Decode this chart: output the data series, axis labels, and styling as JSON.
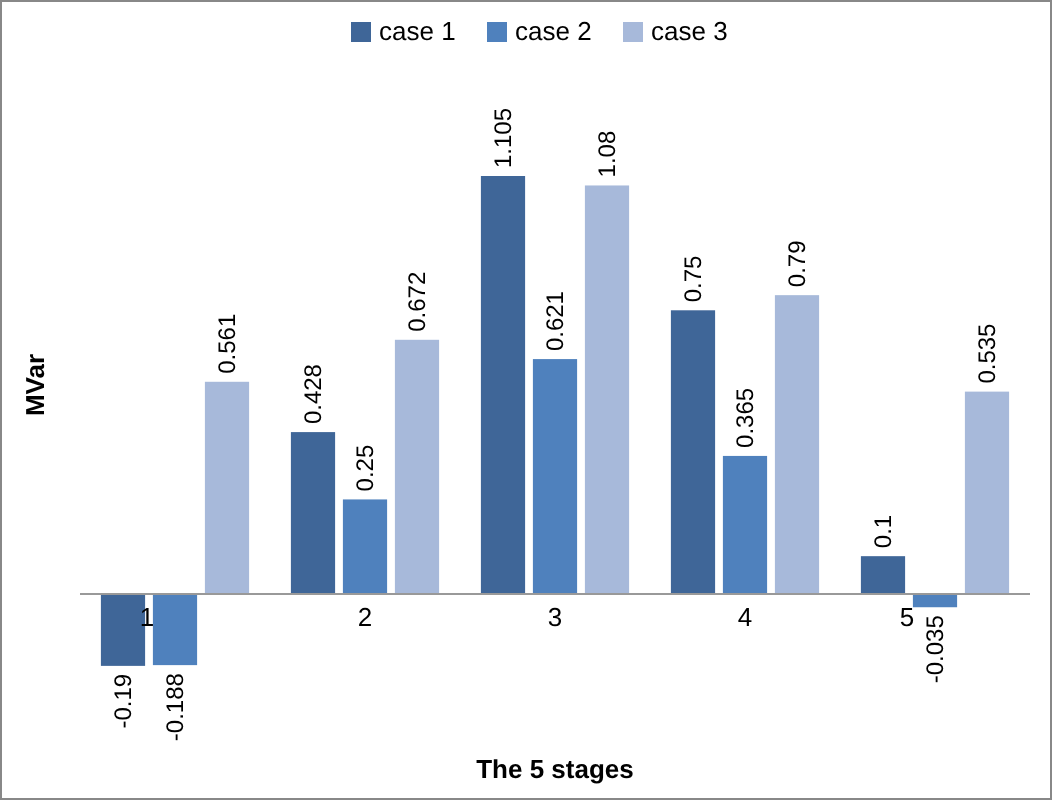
{
  "chart_data": {
    "type": "bar",
    "xlabel": "The 5 stages",
    "ylabel": "MVar",
    "categories": [
      "1",
      "2",
      "3",
      "4",
      "5"
    ],
    "series": [
      {
        "name": "case 1",
        "color": "#3f6698",
        "values": [
          -0.19,
          0.428,
          1.105,
          0.75,
          0.1
        ]
      },
      {
        "name": "case 2",
        "color": "#4f81bd",
        "values": [
          -0.188,
          0.25,
          0.621,
          0.365,
          -0.035
        ]
      },
      {
        "name": "case 3",
        "color": "#a7b9da",
        "values": [
          0.561,
          0.672,
          1.08,
          0.79,
          0.535
        ]
      }
    ],
    "data_labels": true,
    "legend": "top",
    "grid": false
  }
}
